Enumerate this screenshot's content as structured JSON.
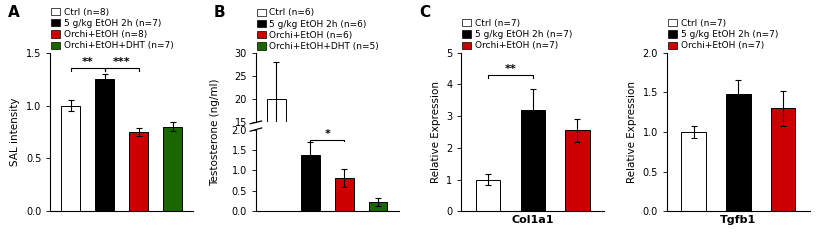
{
  "chart_data": [
    {
      "type": "bar",
      "title": "A",
      "categories": [
        null
      ],
      "series": [
        {
          "name": "Ctrl (n=8)",
          "color": "white",
          "values": [
            1.0
          ],
          "errors": [
            0.05
          ]
        },
        {
          "name": "5 g/kg EtOH 2h (n=7)",
          "color": "black",
          "values": [
            1.25
          ],
          "errors": [
            0.05
          ]
        },
        {
          "name": "Orchi+EtOH (n=8)",
          "color": "#cc0000",
          "values": [
            0.75
          ],
          "errors": [
            0.04
          ]
        },
        {
          "name": "Orchi+EtOH+DHT (n=7)",
          "color": "#1a6600",
          "values": [
            0.8
          ],
          "errors": [
            0.04
          ]
        }
      ],
      "ylabel": "SAL intensity",
      "ylim": [
        0.0,
        1.5
      ],
      "yticks": [
        0.0,
        0.5,
        1.0,
        1.5
      ],
      "legend": "upper left",
      "tick_labels": "y",
      "annotations": [
        {
          "text": "**",
          "between": [
            0,
            1
          ],
          "y": 1.36
        },
        {
          "text": "***",
          "between": [
            1,
            2
          ],
          "y": 1.36
        }
      ]
    },
    {
      "type": "bar",
      "title": "B",
      "categories": [
        null
      ],
      "series": [
        {
          "name": "Ctrl (n=6)",
          "color": "white",
          "values": [
            20.0
          ],
          "errors": [
            8.0
          ]
        },
        {
          "name": "5 g/kg EtOH 2h (n=6)",
          "color": "black",
          "values": [
            null
          ],
          "errors": [
            null
          ]
        },
        {
          "name": "Orchi+EtOH (n=6)",
          "color": "#cc0000",
          "values": [
            null
          ],
          "errors": [
            null
          ]
        },
        {
          "name": "Orchi+EtOH+DHT (n=5)",
          "color": "#1a6600",
          "values": [
            null
          ],
          "errors": [
            null
          ]
        }
      ],
      "ylim": [
        15,
        30
      ],
      "yticks": [
        15,
        20,
        25,
        30
      ],
      "legend": "upper left",
      "tick_labels": "y"
    },
    {
      "type": "bar",
      "categories": [
        null
      ],
      "series": [
        {
          "color": "white",
          "values": [
            null
          ],
          "errors": [
            null
          ]
        },
        {
          "color": "black",
          "values": [
            1.38
          ],
          "errors": [
            0.32
          ]
        },
        {
          "color": "#cc0000",
          "values": [
            0.82
          ],
          "errors": [
            0.22
          ]
        },
        {
          "color": "#1a6600",
          "values": [
            0.22
          ],
          "errors": [
            0.1
          ]
        }
      ],
      "ylabel": "Testosterone (ng/ml)",
      "ylim": [
        0.0,
        2.0
      ],
      "yticks": [
        0.0,
        0.5,
        1.0,
        1.5,
        2.0
      ],
      "tick_labels": "y",
      "annotations": [
        {
          "text": "*",
          "between": [
            1,
            2
          ],
          "y": 1.75
        }
      ]
    },
    {
      "type": "bar",
      "title": "C",
      "categories": [
        null
      ],
      "series": [
        {
          "name": "Ctrl (n=7)",
          "color": "white",
          "values": [
            1.0
          ],
          "errors": [
            0.18
          ]
        },
        {
          "name": "5 g/kg EtOH 2h (n=7)",
          "color": "black",
          "values": [
            3.2
          ],
          "errors": [
            0.65
          ]
        },
        {
          "name": "Orchi+EtOH (n=7)",
          "color": "#cc0000",
          "values": [
            2.55
          ],
          "errors": [
            0.35
          ]
        }
      ],
      "ylabel": "Relative Expression",
      "xlabel": "Col1a1",
      "ylim": [
        0,
        5
      ],
      "yticks": [
        0,
        1,
        2,
        3,
        4,
        5
      ],
      "legend": "upper left",
      "tick_labels": "y",
      "annotations": [
        {
          "text": "**",
          "between": [
            0,
            1
          ],
          "y": 4.3
        }
      ]
    },
    {
      "type": "bar",
      "categories": [
        null
      ],
      "series": [
        {
          "name": "Ctrl (n=7)",
          "color": "white",
          "values": [
            1.0
          ],
          "errors": [
            0.08
          ]
        },
        {
          "name": "5 g/kg EtOH 2h (n=7)",
          "color": "black",
          "values": [
            1.48
          ],
          "errors": [
            0.18
          ]
        },
        {
          "name": "Orchi+EtOH (n=7)",
          "color": "#cc0000",
          "values": [
            1.3
          ],
          "errors": [
            0.22
          ]
        }
      ],
      "ylabel": "Relative Expression",
      "xlabel": "Tgfb1",
      "ylim": [
        0.0,
        2.0
      ],
      "yticks": [
        0.0,
        0.5,
        1.0,
        1.5,
        2.0
      ],
      "legend": "upper left",
      "tick_labels": "y"
    }
  ]
}
